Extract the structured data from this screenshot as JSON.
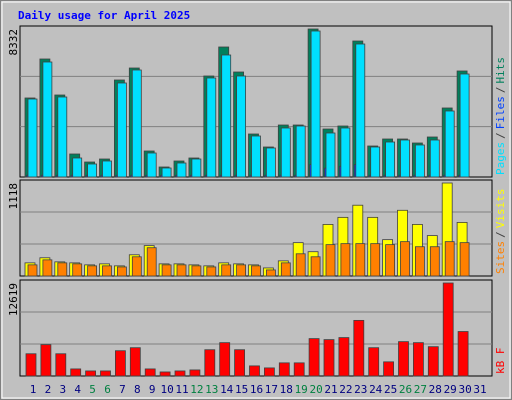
{
  "chart_data": {
    "type": "bar",
    "title": "Daily usage for April 2025",
    "legend_separator": "/",
    "categories": [
      "1",
      "2",
      "3",
      "4",
      "5",
      "6",
      "7",
      "8",
      "9",
      "10",
      "11",
      "12",
      "13",
      "14",
      "15",
      "16",
      "17",
      "18",
      "19",
      "20",
      "21",
      "22",
      "23",
      "24",
      "25",
      "26",
      "27",
      "28",
      "29",
      "30",
      "31"
    ],
    "category_colors": [
      "#000080",
      "#000080",
      "#000080",
      "#000080",
      "#008040",
      "#008040",
      "#000080",
      "#000080",
      "#000080",
      "#000080",
      "#000080",
      "#008040",
      "#008040",
      "#000080",
      "#000080",
      "#000080",
      "#000080",
      "#000080",
      "#008040",
      "#008040",
      "#000080",
      "#000080",
      "#000080",
      "#000080",
      "#000080",
      "#008040",
      "#008040",
      "#000080",
      "#000080",
      "#000080",
      "#000080"
    ],
    "panels": [
      {
        "ylim": [
          0,
          8332
        ],
        "yticks": [
          8332
        ],
        "series": [
          {
            "name": "Hits",
            "color": "#00805c",
            "values": [
              4448,
              6643,
              4616,
              1295,
              844,
              1013,
              5461,
              6136,
              1464,
              563,
              901,
              1070,
              5686,
              7319,
              5911,
              2421,
              1689,
              2927,
              2927,
              8332,
              2702,
              2871,
              7656,
              1745,
              2139,
              2139,
              1914,
              2252,
              3885,
              5968,
              0
            ]
          },
          {
            "name": "Files",
            "color": "#0040ff",
            "values": [
              100,
              100,
              100,
              100,
              100,
              100,
              100,
              100,
              100,
              100,
              100,
              100,
              100,
              100,
              100,
              100,
              100,
              100,
              100,
              700,
              500,
              600,
              700,
              100,
              100,
              100,
              100,
              100,
              100,
              100,
              0
            ]
          },
          {
            "name": "Pages",
            "color": "#00e0ff",
            "values": [
              4391,
              6474,
              4504,
              1070,
              732,
              901,
              5292,
              6024,
              1351,
              507,
              788,
              1013,
              5574,
              6868,
              5686,
              2308,
              1633,
              2759,
              2871,
              8219,
              2477,
              2759,
              7487,
              1689,
              1970,
              2083,
              1802,
              2083,
              3716,
              5799,
              0
            ]
          }
        ]
      },
      {
        "ylim": [
          0,
          1118
        ],
        "yticks": [
          1118
        ],
        "series": [
          {
            "name": "Visits",
            "color": "#ffff00",
            "values": [
              158,
              219,
              170,
              158,
              134,
              146,
              122,
              255,
              365,
              146,
              146,
              134,
              122,
              158,
              146,
              134,
              97,
              182,
              401,
              292,
              620,
              705,
              851,
              705,
              437,
              790,
              620,
              486,
              1118,
              644,
              0
            ]
          },
          {
            "name": "Sites",
            "color": "#ff8000",
            "values": [
              134,
              194,
              158,
              146,
              122,
              122,
              109,
              231,
              340,
              134,
              134,
              122,
              109,
              134,
              134,
              122,
              73,
              158,
              267,
              231,
              377,
              389,
              389,
              389,
              377,
              413,
              352,
              352,
              413,
              401,
              0
            ]
          }
        ]
      },
      {
        "ylim": [
          0,
          12619
        ],
        "yticks": [
          12619
        ],
        "series": [
          {
            "name": "kB F",
            "color": "#ff0000",
            "values": [
              3018,
              4253,
              3018,
              960,
              686,
              686,
              3430,
              3841,
              960,
              549,
              686,
              823,
              3567,
              4527,
              3567,
              1372,
              1098,
              1784,
              1784,
              5075,
              4939,
              5213,
              7545,
              3841,
              1921,
              4664,
              4527,
              3979,
              12619,
              6036,
              0
            ]
          }
        ]
      }
    ]
  }
}
